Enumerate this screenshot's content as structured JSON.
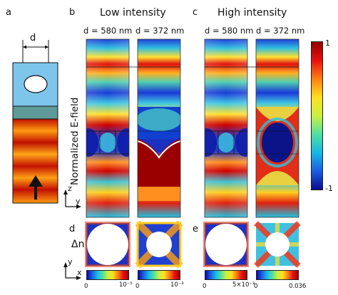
{
  "panel_letters": {
    "a": "a",
    "b": "b",
    "c": "c",
    "d": "d",
    "e": "e"
  },
  "headings": {
    "low": "Low intensity",
    "high": "High intensity"
  },
  "widths": {
    "d580": "d = 580 nm",
    "d372": "d = 372 nm"
  },
  "diagram_a": {
    "dimension_label": "d"
  },
  "ylabel_field": "Normalized E-field",
  "ylabel_dn": "Δn",
  "axes": {
    "z": "z",
    "y": "y",
    "x": "x"
  },
  "colorbar": {
    "max": "1",
    "min": "-1"
  },
  "scales": [
    {
      "min": "0",
      "max": "10⁻⁵"
    },
    {
      "min": "0",
      "max": "10⁻³"
    },
    {
      "min": "0",
      "max": "5×10⁻³"
    },
    {
      "min": "0",
      "max": "0.036"
    }
  ]
}
